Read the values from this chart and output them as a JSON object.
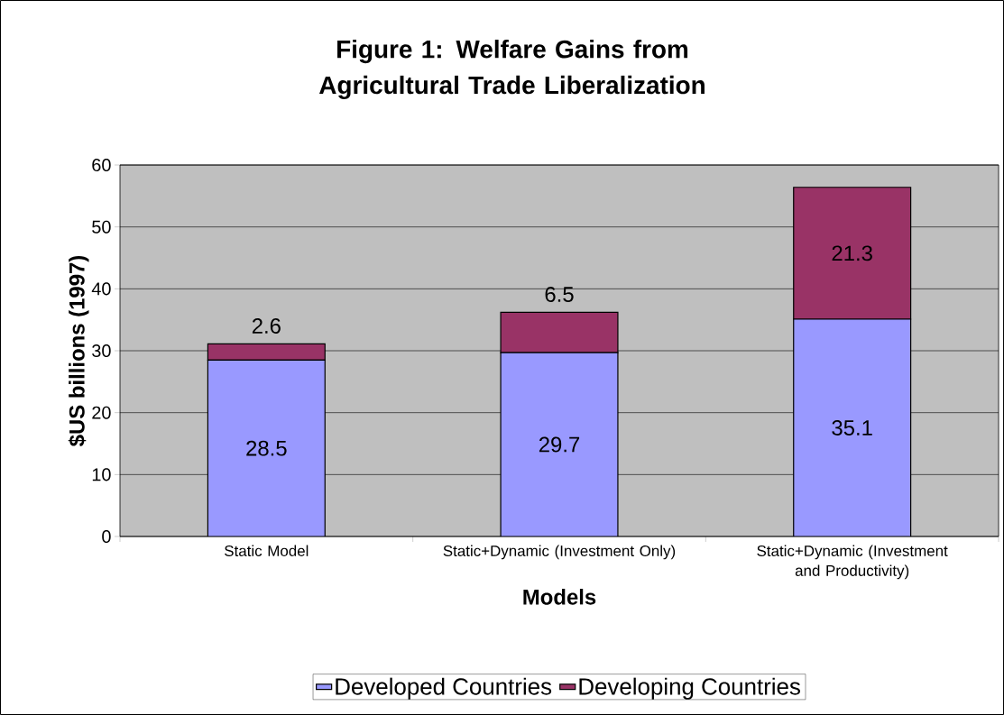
{
  "chart_data": {
    "type": "bar",
    "stacked": true,
    "title": "Figure 1:  Welfare Gains from Agricultural Trade Liberalization",
    "xlabel": "Models",
    "ylabel": "$US billions (1997)",
    "categories": [
      "Static Model",
      "Static+Dynamic (Investment Only)",
      "Static+Dynamic (Investment and Productivity)"
    ],
    "series": [
      {
        "name": "Developed Countries",
        "color": "#9999ff",
        "values": [
          28.5,
          29.7,
          35.1
        ]
      },
      {
        "name": "Developing Countries",
        "color": "#993366",
        "values": [
          2.6,
          6.5,
          21.3
        ]
      }
    ],
    "ylim": [
      0,
      60
    ],
    "yticks": [
      0,
      10,
      20,
      30,
      40,
      50,
      60
    ],
    "grid": "y",
    "legend": "bottom",
    "data_labels": true
  }
}
